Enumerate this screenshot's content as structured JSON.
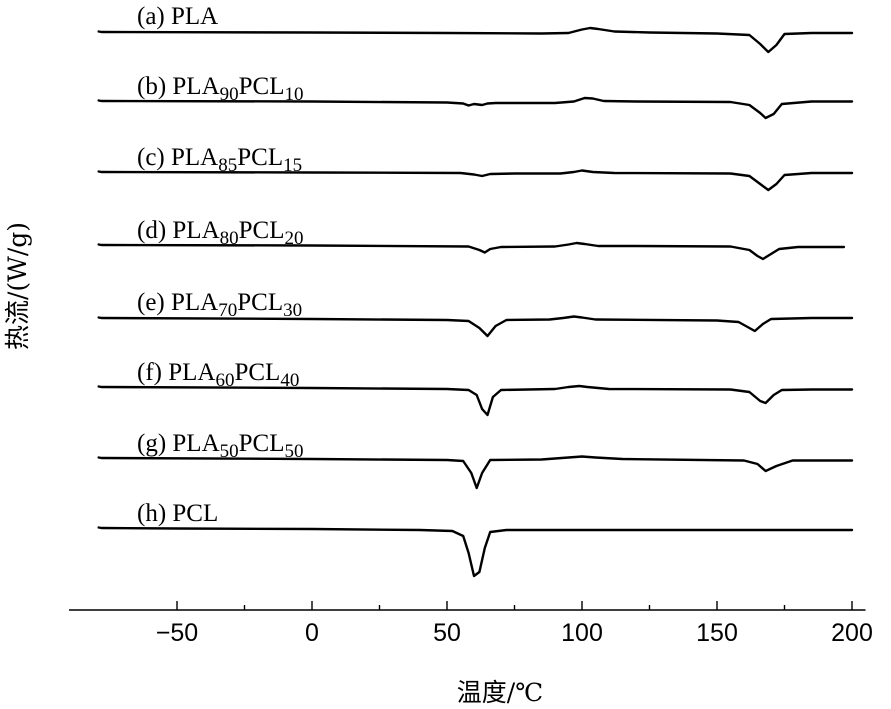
{
  "chart_data": {
    "type": "line",
    "title": "",
    "xlabel": "温度/℃",
    "ylabel": "热流/(W/g)",
    "xlim": [
      -90,
      205
    ],
    "x_ticks": [
      -50,
      0,
      50,
      100,
      150,
      200
    ],
    "y_ticks_shown": false,
    "grid": false,
    "legend": "none",
    "series": [
      {
        "key": "a",
        "label": {
          "pre": "(a) PLA",
          "parts": []
        },
        "points": [
          [
            -79,
            0.5
          ],
          [
            -78,
            0
          ],
          [
            -50,
            -0.2
          ],
          [
            0,
            -0.5
          ],
          [
            50,
            -1
          ],
          [
            85,
            -1.5
          ],
          [
            95,
            -1
          ],
          [
            100,
            2.5
          ],
          [
            103,
            4
          ],
          [
            106,
            3
          ],
          [
            112,
            0.5
          ],
          [
            125,
            -0.5
          ],
          [
            150,
            -1.5
          ],
          [
            162,
            -3
          ],
          [
            166,
            -12
          ],
          [
            169,
            -20
          ],
          [
            172,
            -13
          ],
          [
            175,
            -2
          ],
          [
            185,
            -1
          ],
          [
            200,
            -1
          ]
        ]
      },
      {
        "key": "b",
        "label": {
          "pre": "(b) ",
          "parts": [
            [
              "PLA",
              ""
            ],
            [
              "90",
              "sub"
            ],
            [
              "PCL",
              ""
            ],
            [
              "10",
              "sub"
            ]
          ]
        },
        "points": [
          [
            -79,
            0.5
          ],
          [
            -78,
            0
          ],
          [
            0,
            -0.5
          ],
          [
            50,
            -1.5
          ],
          [
            56,
            -2.5
          ],
          [
            58,
            -4.5
          ],
          [
            60,
            -3
          ],
          [
            63,
            -4
          ],
          [
            65,
            -2.5
          ],
          [
            68,
            -2
          ],
          [
            90,
            -2
          ],
          [
            97,
            -0.5
          ],
          [
            101,
            3
          ],
          [
            104,
            2.5
          ],
          [
            108,
            0
          ],
          [
            120,
            -0.5
          ],
          [
            155,
            -1
          ],
          [
            162,
            -4
          ],
          [
            166,
            -12
          ],
          [
            168,
            -17
          ],
          [
            171,
            -13
          ],
          [
            174,
            -3
          ],
          [
            185,
            -0.5
          ],
          [
            200,
            -0.5
          ]
        ]
      },
      {
        "key": "c",
        "label": {
          "pre": "(c) ",
          "parts": [
            [
              "PLA",
              ""
            ],
            [
              "85",
              "sub"
            ],
            [
              "PCL",
              ""
            ],
            [
              "15",
              "sub"
            ]
          ]
        },
        "points": [
          [
            -79,
            0.5
          ],
          [
            -78,
            0
          ],
          [
            0,
            -0.5
          ],
          [
            55,
            -1
          ],
          [
            60,
            -2.5
          ],
          [
            63,
            -4
          ],
          [
            66,
            -2
          ],
          [
            75,
            -1.5
          ],
          [
            92,
            -1.5
          ],
          [
            97,
            0
          ],
          [
            100,
            1.5
          ],
          [
            104,
            0
          ],
          [
            112,
            -1
          ],
          [
            155,
            -1.5
          ],
          [
            162,
            -4
          ],
          [
            166,
            -12
          ],
          [
            169,
            -18
          ],
          [
            172,
            -12
          ],
          [
            175,
            -3
          ],
          [
            185,
            -1
          ],
          [
            200,
            -1
          ]
        ]
      },
      {
        "key": "d",
        "label": {
          "pre": "(d) ",
          "parts": [
            [
              "PLA",
              ""
            ],
            [
              "80",
              "sub"
            ],
            [
              "PCL",
              ""
            ],
            [
              "20",
              "sub"
            ]
          ]
        },
        "points": [
          [
            -79,
            0.5
          ],
          [
            -78,
            0
          ],
          [
            0,
            -0.5
          ],
          [
            58,
            -1.5
          ],
          [
            62,
            -5
          ],
          [
            64,
            -7.5
          ],
          [
            66,
            -4
          ],
          [
            70,
            -2
          ],
          [
            90,
            -1.5
          ],
          [
            95,
            0.5
          ],
          [
            98,
            2
          ],
          [
            101,
            1
          ],
          [
            106,
            -1
          ],
          [
            120,
            -1
          ],
          [
            155,
            -1.5
          ],
          [
            162,
            -5
          ],
          [
            165,
            -11
          ],
          [
            167,
            -14
          ],
          [
            170,
            -9
          ],
          [
            173,
            -4
          ],
          [
            180,
            -2
          ],
          [
            197,
            -2
          ]
        ]
      },
      {
        "key": "e",
        "label": {
          "pre": "(e) ",
          "parts": [
            [
              "PLA",
              ""
            ],
            [
              "70",
              "sub"
            ],
            [
              "PCL",
              ""
            ],
            [
              "30",
              "sub"
            ]
          ]
        },
        "points": [
          [
            -79,
            0.5
          ],
          [
            -78,
            0
          ],
          [
            0,
            -1
          ],
          [
            50,
            -2
          ],
          [
            58,
            -3
          ],
          [
            62,
            -10
          ],
          [
            65,
            -18
          ],
          [
            68,
            -8
          ],
          [
            72,
            -2
          ],
          [
            88,
            -1.5
          ],
          [
            93,
            0
          ],
          [
            97,
            1.5
          ],
          [
            100,
            0.5
          ],
          [
            105,
            -1.5
          ],
          [
            150,
            -2.5
          ],
          [
            158,
            -4
          ],
          [
            162,
            -10
          ],
          [
            164,
            -13
          ],
          [
            167,
            -6
          ],
          [
            170,
            -1
          ],
          [
            185,
            0
          ],
          [
            200,
            0
          ]
        ]
      },
      {
        "key": "f",
        "label": {
          "pre": "(f) ",
          "parts": [
            [
              "PLA",
              ""
            ],
            [
              "60",
              "sub"
            ],
            [
              "PCL",
              ""
            ],
            [
              "40",
              "sub"
            ]
          ]
        },
        "points": [
          [
            -79,
            0.5
          ],
          [
            -78,
            0
          ],
          [
            0,
            -1
          ],
          [
            50,
            -2
          ],
          [
            58,
            -3
          ],
          [
            61,
            -8
          ],
          [
            63,
            -22
          ],
          [
            65,
            -28
          ],
          [
            67,
            -10
          ],
          [
            70,
            -3
          ],
          [
            90,
            -2
          ],
          [
            95,
            0
          ],
          [
            99,
            1
          ],
          [
            102,
            0
          ],
          [
            110,
            -2
          ],
          [
            155,
            -2.5
          ],
          [
            162,
            -5
          ],
          [
            166,
            -14
          ],
          [
            168,
            -16
          ],
          [
            171,
            -8
          ],
          [
            174,
            -3
          ],
          [
            185,
            -2.5
          ],
          [
            200,
            -2.5
          ]
        ]
      },
      {
        "key": "g",
        "label": {
          "pre": "(g) ",
          "parts": [
            [
              "PLA",
              ""
            ],
            [
              "50",
              "sub"
            ],
            [
              "PCL",
              ""
            ],
            [
              "50",
              "sub"
            ]
          ]
        },
        "points": [
          [
            -79,
            0.5
          ],
          [
            -78,
            0
          ],
          [
            0,
            -1
          ],
          [
            50,
            -2
          ],
          [
            56,
            -3
          ],
          [
            59,
            -15
          ],
          [
            61,
            -30
          ],
          [
            63,
            -15
          ],
          [
            66,
            -2
          ],
          [
            85,
            -1.5
          ],
          [
            95,
            0.5
          ],
          [
            100,
            1.5
          ],
          [
            105,
            0.5
          ],
          [
            115,
            -1
          ],
          [
            160,
            -2.5
          ],
          [
            165,
            -6
          ],
          [
            168,
            -13
          ],
          [
            172,
            -8
          ],
          [
            178,
            -2.5
          ],
          [
            200,
            -2.5
          ]
        ]
      },
      {
        "key": "h",
        "label": {
          "pre": "(h) PCL",
          "parts": []
        },
        "points": [
          [
            -79,
            0.5
          ],
          [
            -78,
            0
          ],
          [
            -50,
            -0.5
          ],
          [
            0,
            -1
          ],
          [
            40,
            -2
          ],
          [
            52,
            -3
          ],
          [
            56,
            -8
          ],
          [
            58,
            -25
          ],
          [
            60,
            -48
          ],
          [
            62,
            -44
          ],
          [
            64,
            -20
          ],
          [
            66,
            -4
          ],
          [
            72,
            -2
          ],
          [
            100,
            -2
          ],
          [
            150,
            -2
          ],
          [
            200,
            -2
          ]
        ]
      }
    ]
  }
}
